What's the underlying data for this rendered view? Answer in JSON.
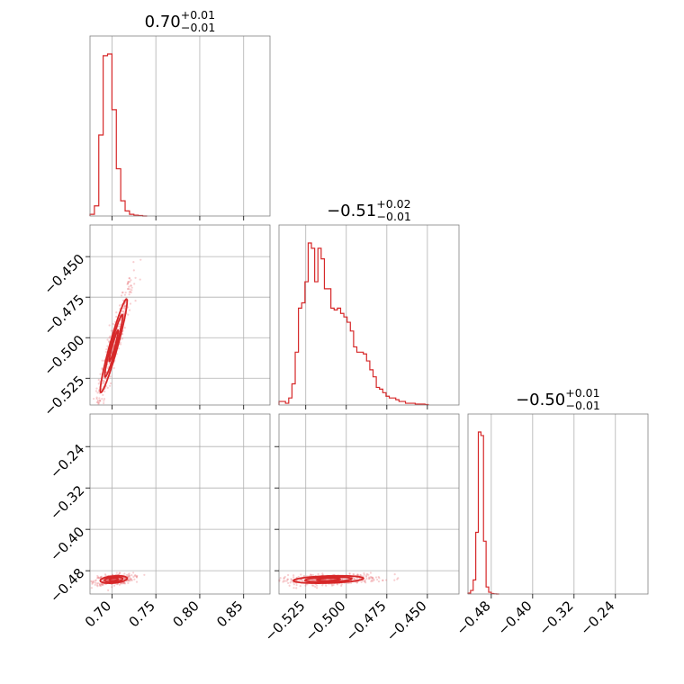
{
  "chart_data": {
    "type": "corner",
    "color": "#d62728",
    "titles": [
      {
        "value": "0.70",
        "plus": "+0.01",
        "minus": "−0.01"
      },
      {
        "value": "−0.51",
        "plus": "+0.02",
        "minus": "−0.01"
      },
      {
        "value": "−0.50",
        "plus": "+0.01",
        "minus": "−0.01"
      }
    ],
    "axes": [
      {
        "range": [
          0.675,
          0.88
        ],
        "ticks": [
          0.7,
          0.75,
          0.8,
          0.85
        ],
        "tick_labels": [
          "0.70",
          "0.75",
          "0.80",
          "0.85"
        ]
      },
      {
        "range": [
          -0.5415,
          -0.4305
        ],
        "ticks": [
          -0.525,
          -0.5,
          -0.475,
          -0.45
        ],
        "tick_labels": [
          "−0.525",
          "−0.500",
          "−0.475",
          "−0.450"
        ]
      },
      {
        "range": [
          -0.525,
          -0.177
        ],
        "ticks": [
          -0.48,
          -0.4,
          -0.32,
          -0.24
        ],
        "tick_labels": [
          "−0.48",
          "−0.40",
          "−0.32",
          "−0.24"
        ]
      }
    ],
    "histograms": [
      {
        "edges": [
          0.675,
          0.68,
          0.685,
          0.69,
          0.695,
          0.7,
          0.705,
          0.71,
          0.715,
          0.72,
          0.725,
          0.73,
          0.735,
          0.74
        ],
        "counts": [
          1,
          6,
          48,
          95,
          96,
          63,
          28,
          9,
          3,
          1,
          0.5,
          0.3,
          0
        ]
      },
      {
        "edges": [
          -0.5415,
          -0.5395,
          -0.5375,
          -0.5355,
          -0.5335,
          -0.5315,
          -0.5295,
          -0.5275,
          -0.5255,
          -0.5235,
          -0.5215,
          -0.5195,
          -0.5175,
          -0.5155,
          -0.5135,
          -0.5115,
          -0.5095,
          -0.5075,
          -0.5055,
          -0.5035,
          -0.5015,
          -0.4995,
          -0.4975,
          -0.4955,
          -0.4935,
          -0.4915,
          -0.4895,
          -0.4875,
          -0.4855,
          -0.4835,
          -0.4815,
          -0.4795,
          -0.4775,
          -0.4755,
          -0.4735,
          -0.4715,
          -0.4695,
          -0.4675,
          -0.4655,
          -0.4635,
          -0.4615,
          -0.4595,
          -0.4575,
          -0.4555,
          -0.4535,
          -0.4515,
          -0.4495
        ],
        "counts": [
          2,
          2,
          1,
          4,
          12,
          30,
          55,
          58,
          70,
          92,
          89,
          70,
          89,
          83,
          66,
          66,
          55,
          54,
          55,
          52,
          50,
          47,
          42,
          33,
          30,
          30,
          29,
          25,
          20,
          16,
          10,
          9,
          7,
          5,
          4,
          4,
          3,
          2,
          2,
          1,
          1,
          1,
          0.5,
          0.5,
          0.5,
          0.3
        ]
      },
      {
        "edges": [
          -0.525,
          -0.52,
          -0.515,
          -0.51,
          -0.505,
          -0.5,
          -0.495,
          -0.49,
          -0.485,
          -0.48,
          -0.475,
          -0.47,
          -0.465
        ],
        "counts": [
          0.5,
          2,
          8,
          35,
          92,
          90,
          30,
          4,
          1,
          0.3,
          0.1,
          0
        ]
      }
    ],
    "pairs": [
      {
        "x": 0,
        "y": 1,
        "center": [
          0.702,
          -0.505
        ],
        "sigma": [
          0.0085,
          0.016
        ],
        "corr": 0.95,
        "n": 420
      },
      {
        "x": 0,
        "y": 2,
        "center": [
          0.702,
          -0.497
        ],
        "sigma": [
          0.0085,
          0.004
        ],
        "corr": 0.3,
        "n": 380
      },
      {
        "x": 1,
        "y": 2,
        "center": [
          -0.511,
          -0.497
        ],
        "sigma": [
          0.012,
          0.004
        ],
        "corr": 0.3,
        "n": 420
      }
    ]
  }
}
